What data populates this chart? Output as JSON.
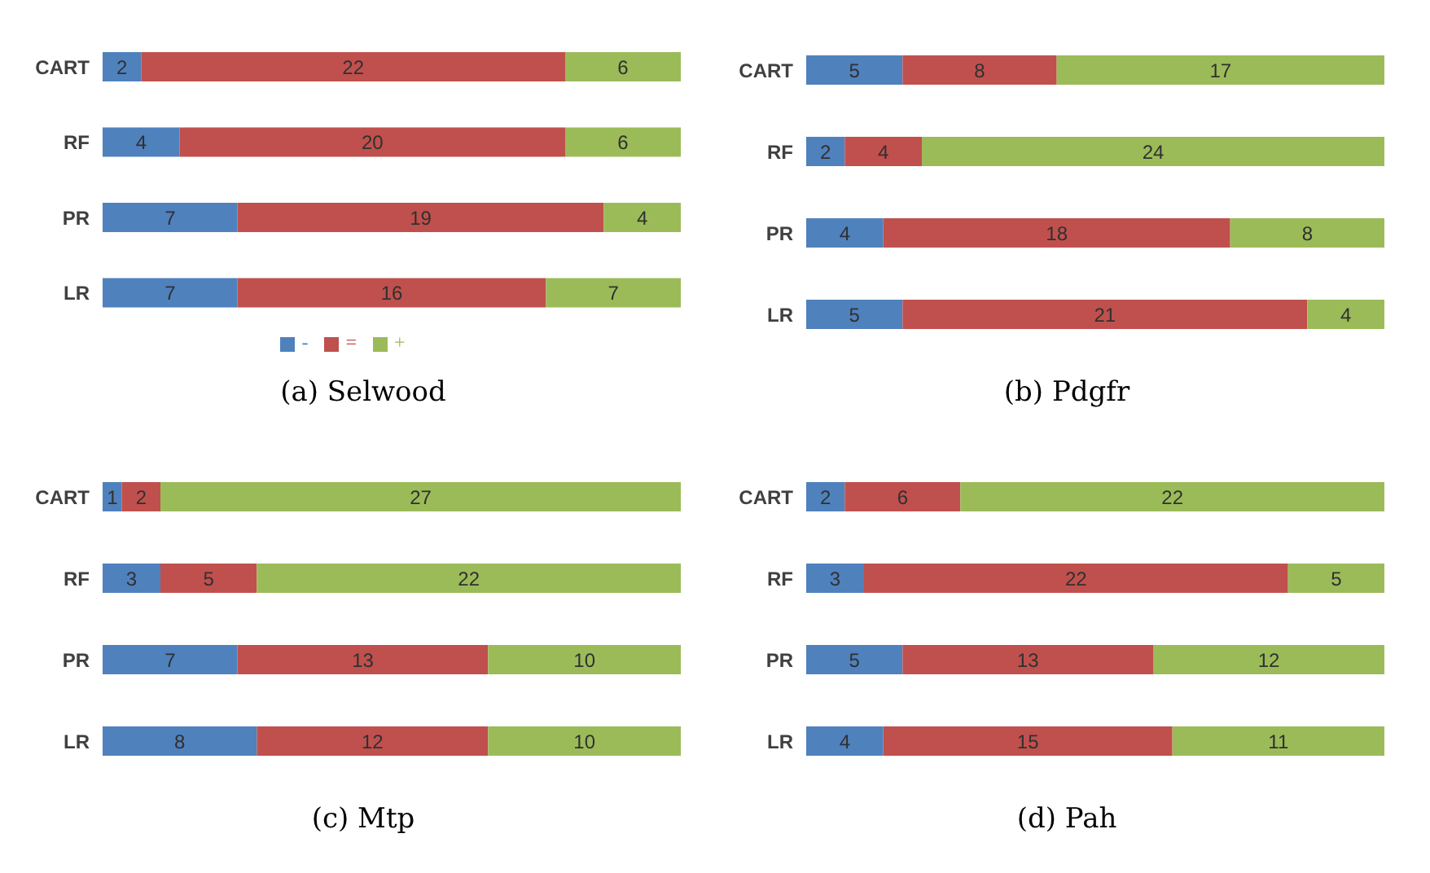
{
  "chart_data": [
    {
      "type": "bar",
      "orientation": "horizontal",
      "stacked": true,
      "data_labels": true,
      "title": "(a) Selwood",
      "legend": "bottom",
      "categories": [
        "CART",
        "RF",
        "PR",
        "LR"
      ],
      "series": [
        {
          "name": "-",
          "color": "#4f81bd",
          "values": [
            2,
            4,
            7,
            7
          ]
        },
        {
          "name": "=",
          "color": "#c0504d",
          "values": [
            22,
            20,
            19,
            16
          ]
        },
        {
          "name": "+",
          "color": "#9bbb59",
          "values": [
            6,
            6,
            4,
            7
          ]
        }
      ]
    },
    {
      "type": "bar",
      "orientation": "horizontal",
      "stacked": true,
      "data_labels": true,
      "title": "(b) Pdgfr",
      "categories": [
        "CART",
        "RF",
        "PR",
        "LR"
      ],
      "series": [
        {
          "color": "#4f81bd",
          "values": [
            5,
            2,
            4,
            5
          ]
        },
        {
          "color": "#c0504d",
          "values": [
            8,
            4,
            18,
            21
          ]
        },
        {
          "color": "#9bbb59",
          "values": [
            17,
            24,
            8,
            4
          ]
        }
      ]
    },
    {
      "type": "bar",
      "orientation": "horizontal",
      "stacked": true,
      "data_labels": true,
      "title": "(c) Mtp",
      "categories": [
        "CART",
        "RF",
        "PR",
        "LR"
      ],
      "series": [
        {
          "color": "#4f81bd",
          "values": [
            1,
            3,
            7,
            8
          ]
        },
        {
          "color": "#c0504d",
          "values": [
            2,
            5,
            13,
            12
          ]
        },
        {
          "color": "#9bbb59",
          "values": [
            27,
            22,
            10,
            10
          ]
        }
      ]
    },
    {
      "type": "bar",
      "orientation": "horizontal",
      "stacked": true,
      "data_labels": true,
      "title": "(d) Pah",
      "categories": [
        "CART",
        "RF",
        "PR",
        "LR"
      ],
      "series": [
        {
          "color": "#4f81bd",
          "values": [
            2,
            3,
            5,
            4
          ]
        },
        {
          "color": "#c0504d",
          "values": [
            6,
            22,
            13,
            15
          ]
        },
        {
          "color": "#9bbb59",
          "values": [
            22,
            5,
            12,
            11
          ]
        }
      ]
    }
  ]
}
